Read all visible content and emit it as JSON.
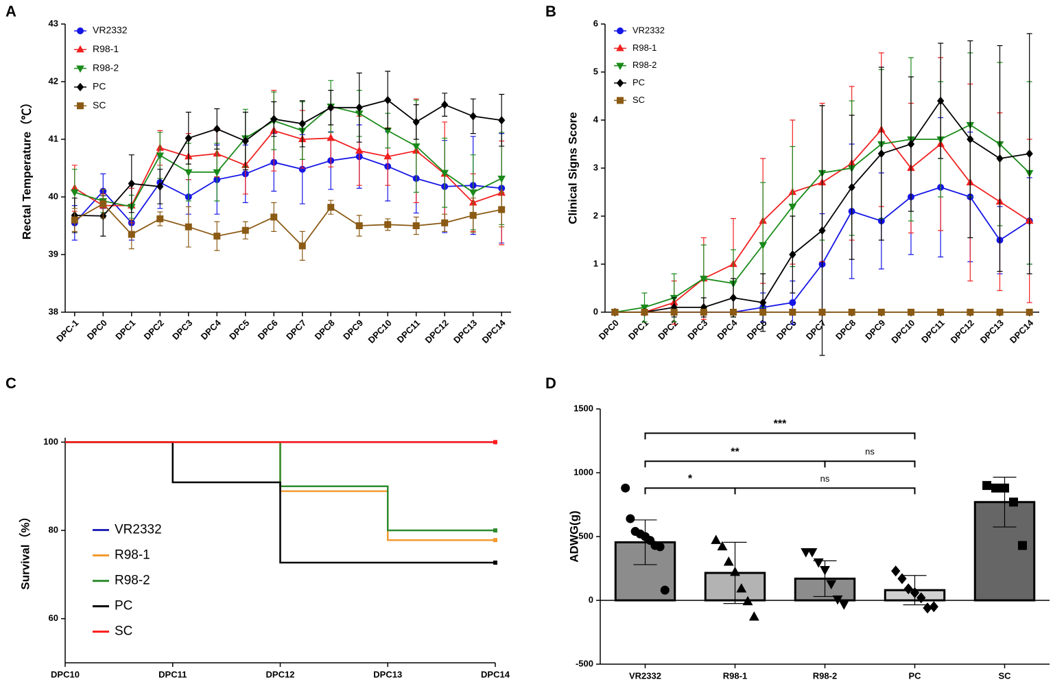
{
  "chart_data": [
    {
      "type": "line",
      "panel": "A",
      "ylabel": "Rectal Temperature（℃）",
      "legend": "upper left",
      "categories": [
        "DPC-1",
        "DPC0",
        "DPC1",
        "DPC2",
        "DPC3",
        "DPC4",
        "DPC5",
        "DPC6",
        "DPC7",
        "DPC8",
        "DPC9",
        "DPC10",
        "DPC11",
        "DPC12",
        "DPC13",
        "DPC14"
      ],
      "ylim": [
        38,
        43
      ],
      "yticks": [
        38,
        39,
        40,
        41,
        42,
        43
      ],
      "series": [
        {
          "name": "VR2332",
          "color": "#1515e6",
          "marker": "circle",
          "values": [
            39.55,
            40.1,
            39.55,
            40.25,
            40.0,
            40.3,
            40.4,
            40.6,
            40.48,
            40.63,
            40.7,
            40.53,
            40.32,
            40.18,
            40.2,
            40.15
          ],
          "errors": [
            0.3,
            0.3,
            0.3,
            0.45,
            0.3,
            0.6,
            0.5,
            0.5,
            0.6,
            0.5,
            0.55,
            0.6,
            0.6,
            0.8,
            0.85,
            0.95
          ]
        },
        {
          "name": "R98-1",
          "color": "#f02020",
          "marker": "triangle-up",
          "values": [
            40.15,
            39.85,
            39.85,
            40.85,
            40.7,
            40.75,
            40.55,
            41.15,
            41.0,
            41.02,
            40.8,
            40.7,
            40.8,
            40.4,
            39.9,
            40.07
          ],
          "errors": [
            0.4,
            0.2,
            0.3,
            0.3,
            0.4,
            0.4,
            0.5,
            0.7,
            0.5,
            0.5,
            0.6,
            0.5,
            0.9,
            0.9,
            0.5,
            0.9
          ]
        },
        {
          "name": "R98-2",
          "color": "#1a8a1a",
          "marker": "triangle-down",
          "values": [
            40.08,
            39.93,
            39.83,
            40.72,
            40.43,
            40.43,
            41.02,
            41.32,
            41.15,
            41.57,
            41.45,
            41.15,
            40.88,
            40.42,
            40.08,
            40.32
          ],
          "errors": [
            0.4,
            0.2,
            0.2,
            0.4,
            0.5,
            0.5,
            0.5,
            0.5,
            0.5,
            0.45,
            0.4,
            0.3,
            0.8,
            0.6,
            0.65,
            0.8
          ]
        },
        {
          "name": "PC",
          "color": "#000000",
          "marker": "diamond",
          "values": [
            39.68,
            39.67,
            40.23,
            40.18,
            41.02,
            41.18,
            40.97,
            41.35,
            41.27,
            41.55,
            41.55,
            41.68,
            41.3,
            41.6,
            41.4,
            41.33
          ],
          "errors": [
            0.3,
            0.35,
            0.5,
            0.3,
            0.45,
            0.35,
            0.5,
            0.3,
            0.4,
            0.3,
            0.6,
            0.5,
            0.3,
            0.2,
            0.3,
            0.45
          ]
        },
        {
          "name": "SC",
          "color": "#8b5a14",
          "marker": "square",
          "values": [
            39.6,
            39.88,
            39.35,
            39.62,
            39.48,
            39.32,
            39.42,
            39.65,
            39.15,
            39.82,
            39.5,
            39.52,
            39.5,
            39.55,
            39.68,
            39.78
          ],
          "errors": [
            0.2,
            0.25,
            0.25,
            0.12,
            0.35,
            0.25,
            0.15,
            0.25,
            0.25,
            0.12,
            0.18,
            0.1,
            0.15,
            0.15,
            0.3,
            0.3
          ]
        }
      ]
    },
    {
      "type": "line",
      "panel": "B",
      "ylabel": "Clinical Signs Score",
      "legend": "upper left",
      "categories": [
        "DPC0",
        "DPC1",
        "DPC2",
        "DPC3",
        "DPC4",
        "DPC5",
        "DPC6",
        "DPC7",
        "DPC8",
        "DPC9",
        "DPC10",
        "DPC11",
        "DPC12",
        "DPC13",
        "DPC14"
      ],
      "ylim": [
        0,
        6
      ],
      "yticks": [
        0,
        1,
        2,
        3,
        4,
        5,
        6
      ],
      "series": [
        {
          "name": "VR2332",
          "color": "#1515e6",
          "marker": "circle",
          "values": [
            0,
            0,
            0,
            0,
            0,
            0.1,
            0.2,
            1.0,
            2.1,
            1.9,
            2.4,
            2.6,
            2.4,
            1.5,
            1.9
          ],
          "errors": [
            0,
            0,
            0,
            0,
            0,
            0.3,
            0.45,
            1.05,
            1.4,
            1.0,
            1.2,
            1.45,
            1.35,
            0.7,
            0.9
          ]
        },
        {
          "name": "R98-1",
          "color": "#f02020",
          "marker": "triangle-up",
          "values": [
            0,
            0,
            0.2,
            0.7,
            1.0,
            1.9,
            2.5,
            2.7,
            3.1,
            3.8,
            3.0,
            3.5,
            2.7,
            2.3,
            1.9
          ],
          "errors": [
            0,
            0,
            0.45,
            0.85,
            0.95,
            1.3,
            1.5,
            1.65,
            1.6,
            1.6,
            1.35,
            1.8,
            2.05,
            1.85,
            1.7
          ]
        },
        {
          "name": "R98-2",
          "color": "#1a8a1a",
          "marker": "triangle-down",
          "values": [
            0,
            0.1,
            0.3,
            0.7,
            0.6,
            1.4,
            2.2,
            2.9,
            3.0,
            3.5,
            3.6,
            3.6,
            3.9,
            3.5,
            2.9
          ],
          "errors": [
            0,
            0.3,
            0.5,
            0.7,
            0.7,
            1.3,
            1.25,
            1.4,
            1.4,
            1.55,
            1.7,
            1.2,
            1.5,
            1.7,
            1.9
          ]
        },
        {
          "name": "PC",
          "color": "#000000",
          "marker": "diamond",
          "values": [
            0,
            0,
            0.1,
            0.1,
            0.3,
            0.2,
            1.2,
            1.7,
            2.6,
            3.3,
            3.5,
            4.4,
            3.6,
            3.2,
            3.3
          ],
          "errors": [
            0,
            0,
            0.2,
            0.2,
            0.4,
            0.6,
            0.8,
            2.6,
            1.5,
            1.8,
            1.4,
            1.2,
            2.05,
            2.35,
            2.5
          ]
        },
        {
          "name": "SC",
          "color": "#8b5a14",
          "marker": "square",
          "values": [
            0,
            0,
            0,
            0,
            0,
            0,
            0,
            0,
            0,
            0,
            0,
            0,
            0,
            0,
            0
          ],
          "errors": [
            0,
            0,
            0,
            0,
            0,
            0,
            0,
            0,
            0,
            0,
            0,
            0,
            0,
            0,
            0
          ]
        }
      ]
    },
    {
      "type": "step",
      "panel": "C",
      "ylabel": "Survival（%）",
      "legend": "center left",
      "categories": [
        "DPC10",
        "DPC11",
        "DPC12",
        "DPC13",
        "DPC14"
      ],
      "ylim": [
        50,
        101
      ],
      "yticks": [
        60,
        80,
        100
      ],
      "series": [
        {
          "name": "VR2332",
          "color": "#2323b8",
          "values": [
            100,
            100,
            100,
            100,
            100
          ]
        },
        {
          "name": "R98-1",
          "color": "#f39a2f",
          "values": [
            100,
            100,
            88.9,
            77.8,
            77.8
          ]
        },
        {
          "name": "R98-2",
          "color": "#2e8b2e",
          "values": [
            100,
            100,
            90,
            80,
            80
          ]
        },
        {
          "name": "PC",
          "color": "#000000",
          "values": [
            100,
            90.9,
            72.7,
            72.7,
            72.7
          ]
        },
        {
          "name": "SC",
          "color": "#ff1a1a",
          "values": [
            100,
            100,
            100,
            100,
            100
          ]
        }
      ]
    },
    {
      "type": "bar",
      "panel": "D",
      "ylabel": "ADWG(g)",
      "categories": [
        "VR2332",
        "R98-1",
        "R98-2",
        "PC",
        "SC"
      ],
      "values": [
        455,
        215,
        170,
        80,
        770
      ],
      "errors": [
        175,
        240,
        140,
        115,
        195
      ],
      "colors": [
        "#8c8c8c",
        "#b3b3b3",
        "#8c8c8c",
        "#d0d0d0",
        "#666666"
      ],
      "markers": [
        "circle",
        "triangle-up",
        "triangle-down",
        "diamond",
        "square"
      ],
      "points": [
        [
          880,
          640,
          540,
          520,
          500,
          470,
          430,
          420,
          80
        ],
        [
          470,
          420,
          300,
          220,
          90,
          -10,
          -130
        ],
        [
          380,
          380,
          300,
          240,
          130,
          10,
          -30
        ],
        [
          230,
          170,
          90,
          60,
          20,
          -60,
          -50
        ],
        [
          900,
          880,
          880,
          770,
          430
        ]
      ],
      "ylim": [
        -500,
        1500
      ],
      "yticks": [
        -500,
        0,
        500,
        1000,
        1500
      ],
      "annotations": [
        {
          "pair": [
            "VR2332",
            "PC"
          ],
          "label": "***",
          "y": 1310
        },
        {
          "pair": [
            "VR2332",
            "R98-2"
          ],
          "label": "**",
          "y": 1090
        },
        {
          "pair": [
            "R98-2",
            "PC"
          ],
          "label": "ns",
          "y": 1090
        },
        {
          "pair": [
            "VR2332",
            "R98-1"
          ],
          "label": "*",
          "y": 880
        },
        {
          "pair": [
            "R98-1",
            "PC"
          ],
          "label": "ns",
          "y": 880
        }
      ]
    }
  ]
}
